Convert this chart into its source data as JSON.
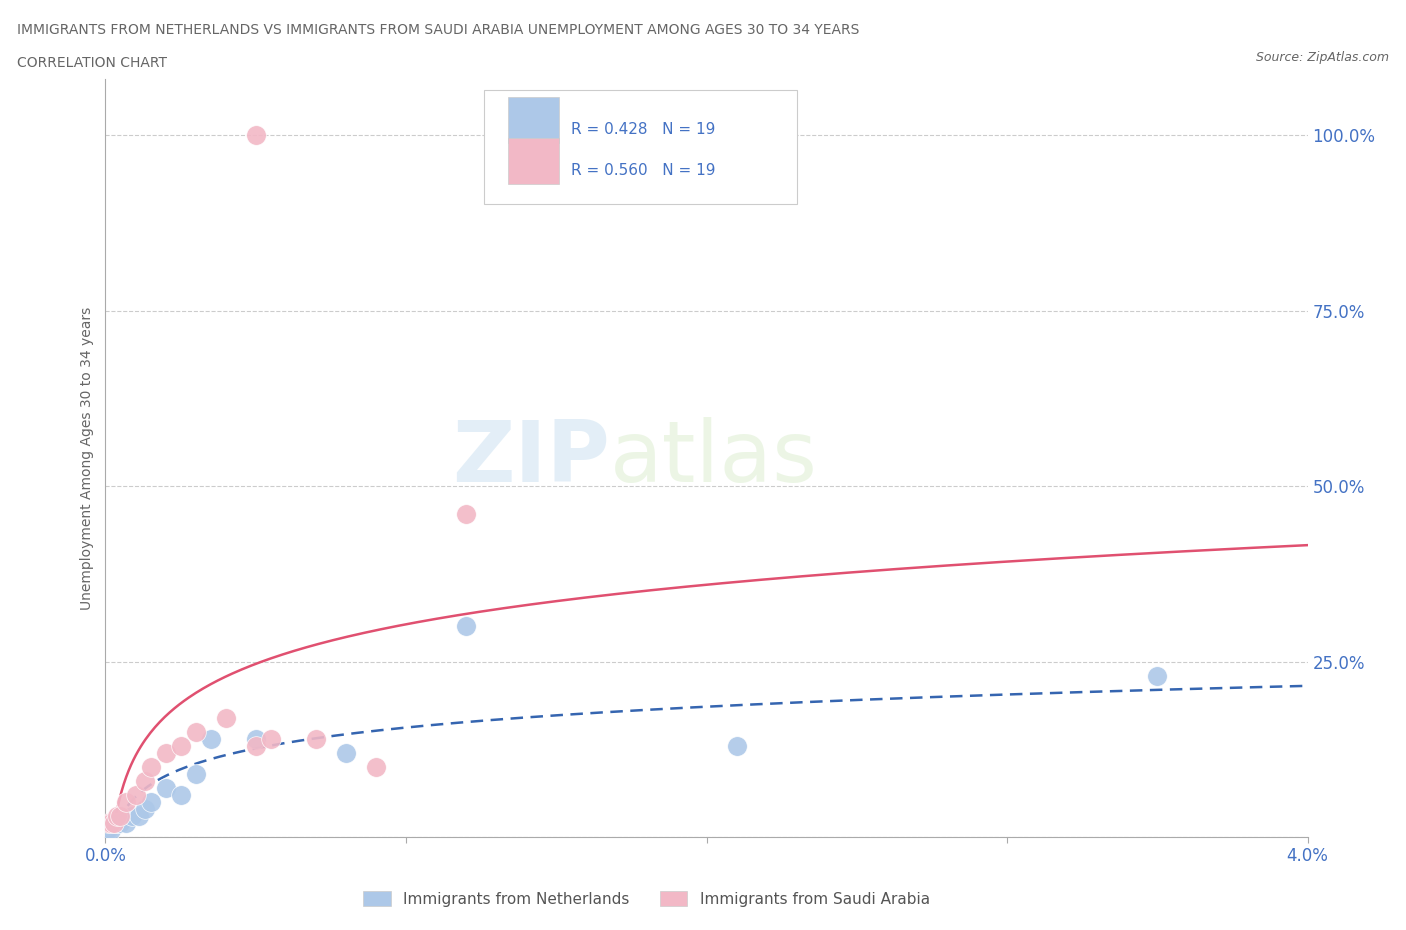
{
  "title_line1": "IMMIGRANTS FROM NETHERLANDS VS IMMIGRANTS FROM SAUDI ARABIA UNEMPLOYMENT AMONG AGES 30 TO 34 YEARS",
  "title_line2": "CORRELATION CHART",
  "source_text": "Source: ZipAtlas.com",
  "ylabel": "Unemployment Among Ages 30 to 34 years",
  "xlim": [
    0.0,
    0.04
  ],
  "ylim": [
    0.0,
    1.08
  ],
  "xticks": [
    0.0,
    0.01,
    0.02,
    0.03,
    0.04
  ],
  "xtick_labels": [
    "0.0%",
    "",
    "",
    "",
    "4.0%"
  ],
  "yticks": [
    0.0,
    0.25,
    0.5,
    0.75,
    1.0
  ],
  "ytick_labels": [
    "",
    "25.0%",
    "50.0%",
    "75.0%",
    "100.0%"
  ],
  "netherlands_x": [
    0.0001,
    0.0002,
    0.0003,
    0.0004,
    0.0005,
    0.0007,
    0.0009,
    0.0011,
    0.0013,
    0.0015,
    0.002,
    0.0025,
    0.003,
    0.0035,
    0.005,
    0.008,
    0.012,
    0.021,
    0.035
  ],
  "netherlands_y": [
    0.01,
    0.01,
    0.02,
    0.02,
    0.02,
    0.02,
    0.03,
    0.03,
    0.04,
    0.05,
    0.07,
    0.06,
    0.09,
    0.14,
    0.14,
    0.12,
    0.3,
    0.13,
    0.23
  ],
  "saudi_x": [
    0.0001,
    0.0002,
    0.0003,
    0.0004,
    0.0005,
    0.0007,
    0.001,
    0.0013,
    0.0015,
    0.002,
    0.0025,
    0.003,
    0.004,
    0.005,
    0.0055,
    0.007,
    0.009,
    0.012,
    0.005
  ],
  "saudi_y": [
    0.02,
    0.02,
    0.02,
    0.03,
    0.03,
    0.05,
    0.06,
    0.08,
    0.1,
    0.12,
    0.13,
    0.15,
    0.17,
    0.13,
    0.14,
    0.14,
    0.1,
    0.46,
    1.0
  ],
  "netherlands_color": "#adc8e8",
  "saudi_color": "#f2b8c6",
  "netherlands_line_color": "#3565b0",
  "saudi_line_color": "#e05070",
  "netherlands_R": 0.428,
  "netherlands_N": 19,
  "saudi_R": 0.56,
  "saudi_N": 19,
  "watermark_zip": "ZIP",
  "watermark_atlas": "atlas",
  "background_color": "#ffffff",
  "grid_color": "#cccccc",
  "title_color": "#666666",
  "axis_color": "#4472c4",
  "legend_text_color": "#4472c4",
  "legend_label_color": "#555555"
}
